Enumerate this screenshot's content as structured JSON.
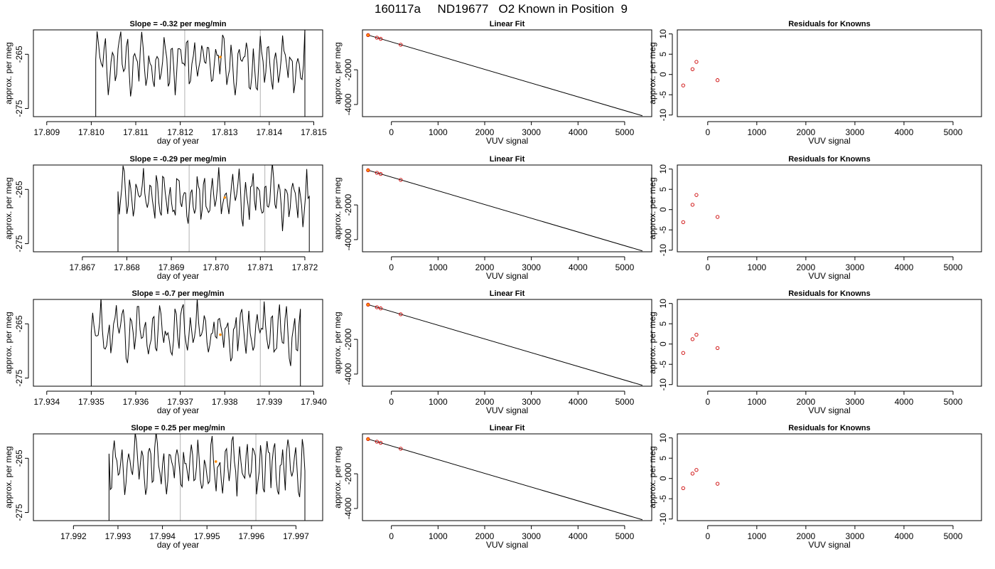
{
  "page": {
    "title": "160117a     ND19677   O2 Known in Position  9"
  },
  "chart_data": [
    {
      "type": "line",
      "title": "Slope =  -0.32  per meg/min",
      "xlabel": "day of year",
      "ylabel": "approx. per meg",
      "xlim": [
        17.8087,
        17.8152
      ],
      "ylim": [
        -276.5,
        -260.5
      ],
      "xticks": [
        "17.809",
        "17.810",
        "17.811",
        "17.812",
        "17.813",
        "17.814",
        "17.815"
      ],
      "yticks": [
        "-265",
        "-275"
      ],
      "vlines": [
        17.8121,
        17.8138
      ],
      "series_range": [
        17.8101,
        17.8148
      ],
      "marker": {
        "x": 17.8129,
        "y": -265.5,
        "color": "#ff8c00"
      }
    },
    {
      "type": "line",
      "title": "Linear Fit",
      "xlabel": "VUV signal",
      "ylabel": "approx. per meg",
      "xlim": [
        -620,
        5580
      ],
      "ylim": [
        -4700,
        300
      ],
      "xticks": [
        "0",
        "1000",
        "2000",
        "3000",
        "4000",
        "5000"
      ],
      "yticks": [
        "-2000",
        "-4000"
      ],
      "fit": {
        "x": [
          -500,
          5380
        ],
        "y": [
          0,
          -4650
        ]
      },
      "points": {
        "x": [
          -500,
          -310,
          -230,
          200
        ],
        "y": [
          0,
          -150,
          -215,
          -557
        ]
      },
      "highlight": {
        "x": -500,
        "y": 0,
        "color": "#ff8c00"
      }
    },
    {
      "type": "scatter",
      "title": "Residuals for Knowns",
      "xlabel": "VUV signal",
      "ylabel": "approx. per meg",
      "xlim": [
        -620,
        5580
      ],
      "ylim": [
        -10.4,
        11
      ],
      "xticks": [
        "0",
        "1000",
        "2000",
        "3000",
        "4000",
        "5000"
      ],
      "yticks": [
        "-10",
        "-5",
        "0",
        "5",
        "10"
      ],
      "points": {
        "x": [
          -500,
          -310,
          -230,
          200
        ],
        "y": [
          -2.7,
          1.3,
          3.1,
          -1.4
        ]
      }
    },
    {
      "type": "line",
      "title": "Slope =  -0.29  per meg/min",
      "xlabel": "day of year",
      "ylabel": "approx. per meg",
      "xlim": [
        17.8659,
        17.8724
      ],
      "ylim": [
        -276.5,
        -260.5
      ],
      "xticks": [
        "17.867",
        "17.868",
        "17.869",
        "17.870",
        "17.871",
        "17.872"
      ],
      "yticks": [
        "-265",
        "-275"
      ],
      "vlines": [
        17.8694,
        17.8711
      ],
      "series_range": [
        17.8678,
        17.8721
      ],
      "marker": {
        "x": 17.8702,
        "y": -266.5,
        "color": "#ff8c00"
      }
    },
    {
      "type": "line",
      "title": "Linear Fit",
      "xlabel": "VUV signal",
      "ylabel": "approx. per meg",
      "xlim": [
        -620,
        5580
      ],
      "ylim": [
        -4700,
        300
      ],
      "xticks": [
        "0",
        "1000",
        "2000",
        "3000",
        "4000",
        "5000"
      ],
      "yticks": [
        "-2000",
        "-4000"
      ],
      "fit": {
        "x": [
          -500,
          5380
        ],
        "y": [
          0,
          -4650
        ]
      },
      "points": {
        "x": [
          -500,
          -310,
          -230,
          200
        ],
        "y": [
          0,
          -150,
          -215,
          -557
        ]
      },
      "highlight": {
        "x": -500,
        "y": 0,
        "color": "#ff8c00"
      }
    },
    {
      "type": "scatter",
      "title": "Residuals for Knowns",
      "xlabel": "VUV signal",
      "ylabel": "approx. per meg",
      "xlim": [
        -620,
        5580
      ],
      "ylim": [
        -10.4,
        11
      ],
      "xticks": [
        "0",
        "1000",
        "2000",
        "3000",
        "4000",
        "5000"
      ],
      "yticks": [
        "-10",
        "-5",
        "0",
        "5",
        "10"
      ],
      "points": {
        "x": [
          -500,
          -310,
          -230,
          200
        ],
        "y": [
          -3.1,
          1.2,
          3.6,
          -1.8
        ]
      }
    },
    {
      "type": "line",
      "title": "Slope =  -0.7  per meg/min",
      "xlabel": "day of year",
      "ylabel": "approx. per meg",
      "xlim": [
        17.9337,
        17.9402
      ],
      "ylim": [
        -276.5,
        -260.5
      ],
      "xticks": [
        "17.934",
        "17.935",
        "17.936",
        "17.937",
        "17.938",
        "17.939",
        "17.940"
      ],
      "yticks": [
        "-265",
        "-275"
      ],
      "vlines": [
        17.9371,
        17.9388
      ],
      "series_range": [
        17.935,
        17.9397
      ],
      "marker": {
        "x": 17.9379,
        "y": -267.0,
        "color": "#ff8c00"
      }
    },
    {
      "type": "line",
      "title": "Linear Fit",
      "xlabel": "VUV signal",
      "ylabel": "approx. per meg",
      "xlim": [
        -620,
        5580
      ],
      "ylim": [
        -4700,
        300
      ],
      "xticks": [
        "0",
        "1000",
        "2000",
        "3000",
        "4000",
        "5000"
      ],
      "yticks": [
        "-2000",
        "-4000"
      ],
      "fit": {
        "x": [
          -500,
          5380
        ],
        "y": [
          0,
          -4650
        ]
      },
      "points": {
        "x": [
          -500,
          -310,
          -230,
          200
        ],
        "y": [
          0,
          -150,
          -215,
          -557
        ]
      },
      "highlight": {
        "x": -500,
        "y": 0,
        "color": "#ff8c00"
      }
    },
    {
      "type": "scatter",
      "title": "Residuals for Knowns",
      "xlabel": "VUV signal",
      "ylabel": "approx. per meg",
      "xlim": [
        -620,
        5580
      ],
      "ylim": [
        -10.4,
        11
      ],
      "xticks": [
        "0",
        "1000",
        "2000",
        "3000",
        "4000",
        "5000"
      ],
      "yticks": [
        "-10",
        "-5",
        "0",
        "5",
        "10"
      ],
      "points": {
        "x": [
          -500,
          -310,
          -230,
          200
        ],
        "y": [
          -2.2,
          1.2,
          2.3,
          -1.0
        ]
      }
    },
    {
      "type": "line",
      "title": "Slope =  0.25  per meg/min",
      "xlabel": "day of year",
      "ylabel": "approx. per meg",
      "xlim": [
        17.9911,
        17.9976
      ],
      "ylim": [
        -276.5,
        -260.5
      ],
      "xticks": [
        "17.992",
        "17.993",
        "17.994",
        "17.995",
        "17.996",
        "17.997"
      ],
      "yticks": [
        "-265",
        "-275"
      ],
      "vlines": [
        17.9944,
        17.9961
      ],
      "series_range": [
        17.9928,
        17.9972
      ],
      "marker": {
        "x": 17.9952,
        "y": -265.6,
        "color": "#ff8c00"
      }
    },
    {
      "type": "line",
      "title": "Linear Fit",
      "xlabel": "VUV signal",
      "ylabel": "approx. per meg",
      "xlim": [
        -620,
        5580
      ],
      "ylim": [
        -4700,
        300
      ],
      "xticks": [
        "0",
        "1000",
        "2000",
        "3000",
        "4000",
        "5000"
      ],
      "yticks": [
        "-2000",
        "-4000"
      ],
      "fit": {
        "x": [
          -500,
          5380
        ],
        "y": [
          0,
          -4650
        ]
      },
      "points": {
        "x": [
          -500,
          -310,
          -230,
          200
        ],
        "y": [
          0,
          -150,
          -215,
          -557
        ]
      },
      "highlight": {
        "x": -500,
        "y": 0,
        "color": "#ff8c00"
      }
    },
    {
      "type": "scatter",
      "title": "Residuals for Knowns",
      "xlabel": "VUV signal",
      "ylabel": "approx. per meg",
      "xlim": [
        -620,
        5580
      ],
      "ylim": [
        -10.4,
        11
      ],
      "xticks": [
        "0",
        "1000",
        "2000",
        "3000",
        "4000",
        "5000"
      ],
      "yticks": [
        "-10",
        "-5",
        "0",
        "5",
        "10"
      ],
      "points": {
        "x": [
          -500,
          -310,
          -230,
          200
        ],
        "y": [
          -2.4,
          1.2,
          2.1,
          -1.3
        ]
      }
    }
  ],
  "style": {
    "point_color": "#cc0000",
    "highlight_color": "#ff8c00",
    "vline_color": "#bfbfbf",
    "line_color": "#000000"
  }
}
